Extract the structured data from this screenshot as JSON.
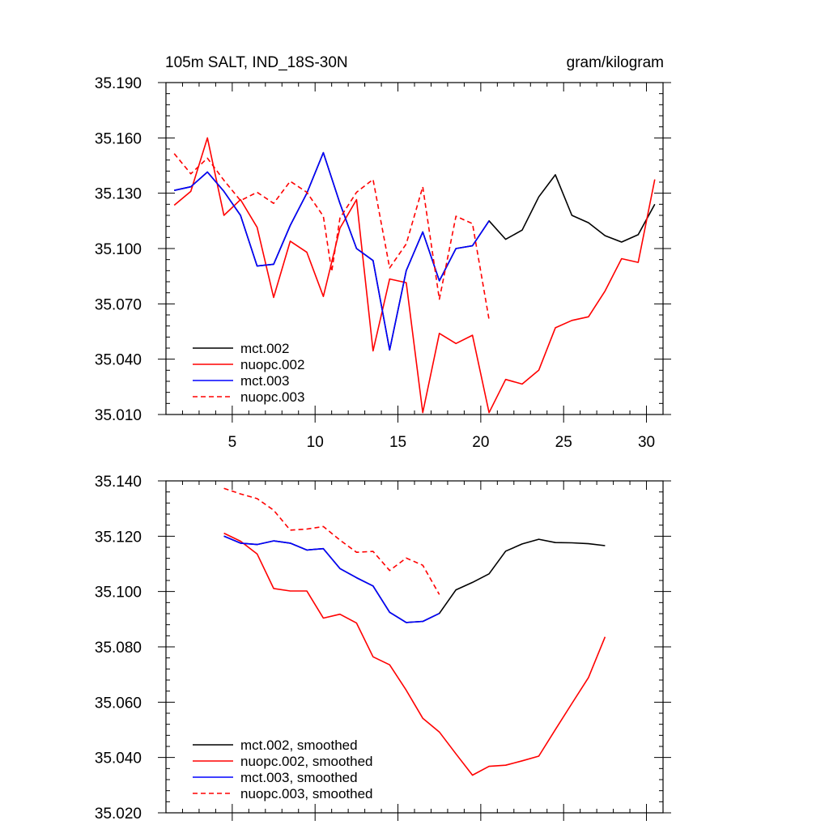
{
  "chart_data": [
    {
      "type": "line",
      "title_left": "105m SALT, IND_18S-30N",
      "title_right": "gram/kilogram",
      "xlabel": "",
      "ylabel": "",
      "xlim": [
        1,
        31
      ],
      "ylim": [
        35.01,
        35.19
      ],
      "x_ticks": [
        5,
        10,
        15,
        20,
        25,
        30
      ],
      "x_tick_labels": [
        "5",
        "10",
        "15",
        "20",
        "25",
        "30"
      ],
      "y_ticks": [
        35.01,
        35.04,
        35.07,
        35.1,
        35.13,
        35.16,
        35.19
      ],
      "y_tick_labels": [
        "35.010",
        "35.040",
        "35.070",
        "35.100",
        "35.130",
        "35.160",
        "35.190"
      ],
      "legend_position": "bottom-left",
      "series": [
        {
          "name": "mct.002",
          "color": "#000000",
          "dash": "solid",
          "x": [
            1.5,
            2.5,
            3.5,
            4.5,
            5.5,
            6.5,
            7.5,
            8.5,
            9.5,
            10.5,
            11.5,
            12.5,
            13.5,
            14.5,
            15.5,
            16.5,
            17.5,
            18.5,
            19.5,
            20.5,
            21.5,
            22.5,
            23.5,
            24.5,
            25.5,
            26.5,
            27.5,
            28.5,
            29.5,
            30.5
          ],
          "y": [
            35.1315,
            35.1335,
            35.1415,
            35.131,
            35.118,
            35.0905,
            35.0915,
            35.1125,
            35.13,
            35.152,
            35.1245,
            35.1,
            35.0935,
            35.045,
            35.088,
            35.109,
            35.0825,
            35.1,
            35.1015,
            35.115,
            35.105,
            35.11,
            35.128,
            35.14,
            35.118,
            35.114,
            35.107,
            35.1035,
            35.1075,
            35.124
          ]
        },
        {
          "name": "nuopc.002",
          "color": "#ff0000",
          "dash": "solid",
          "x": [
            1.5,
            2.5,
            3.5,
            4.5,
            5.5,
            6.5,
            7.5,
            8.5,
            9.5,
            10.5,
            11.5,
            12.5,
            13.5,
            14.5,
            15.5,
            16.5,
            17.5,
            18.5,
            19.5,
            20.5,
            21.5,
            22.5,
            23.5,
            24.5,
            25.5,
            26.5,
            27.5,
            28.5,
            29.5,
            30.5
          ],
          "y": [
            35.1235,
            35.131,
            35.16,
            35.118,
            35.1265,
            35.1115,
            35.0735,
            35.104,
            35.098,
            35.074,
            35.111,
            35.1265,
            35.0445,
            35.0835,
            35.0815,
            35.011,
            35.054,
            35.0485,
            35.053,
            35.011,
            35.029,
            35.0265,
            35.034,
            35.057,
            35.061,
            35.063,
            35.077,
            35.0945,
            35.0925,
            35.1375
          ]
        },
        {
          "name": "mct.003",
          "color": "#0000ff",
          "dash": "solid",
          "x": [
            1.5,
            2.5,
            3.5,
            4.5,
            5.5,
            6.5,
            7.5,
            8.5,
            9.5,
            10.5,
            11.5,
            12.5,
            13.5,
            14.5,
            15.5,
            16.5,
            17.5,
            18.5,
            19.5,
            20.5
          ],
          "y": [
            35.1315,
            35.1335,
            35.1415,
            35.131,
            35.118,
            35.0905,
            35.0915,
            35.1125,
            35.13,
            35.152,
            35.1245,
            35.1,
            35.0935,
            35.045,
            35.088,
            35.109,
            35.0825,
            35.1,
            35.1015,
            35.115
          ]
        },
        {
          "name": "nuopc.003",
          "color": "#ff0000",
          "dash": "dashed",
          "x": [
            1.5,
            2.5,
            3.5,
            4.5,
            5.5,
            6.5,
            7.5,
            8.5,
            9.5,
            10.5,
            11.0,
            11.5,
            12.5,
            13.5,
            14.5,
            15.5,
            16.5,
            17.5,
            18.5,
            19.5,
            20.5
          ],
          "y": [
            35.1515,
            35.1405,
            35.149,
            35.137,
            35.126,
            35.1305,
            35.1245,
            35.1365,
            35.1305,
            35.1175,
            35.0875,
            35.1165,
            35.1305,
            35.1375,
            35.0895,
            35.1025,
            35.1335,
            35.0725,
            35.1175,
            35.1135,
            35.0615
          ]
        }
      ]
    },
    {
      "type": "line",
      "title_left": "",
      "title_right": "",
      "xlabel": "",
      "ylabel": "",
      "xlim": [
        1,
        31
      ],
      "ylim": [
        35.02,
        35.14
      ],
      "x_ticks": [
        5,
        10,
        15,
        20,
        25,
        30
      ],
      "x_tick_labels": [],
      "y_ticks": [
        35.02,
        35.04,
        35.06,
        35.08,
        35.1,
        35.12,
        35.14
      ],
      "y_tick_labels": [
        "35.020",
        "35.040",
        "35.060",
        "35.080",
        "35.100",
        "35.120",
        "35.140"
      ],
      "legend_position": "bottom-left",
      "series": [
        {
          "name": "mct.002, smoothed",
          "color": "#000000",
          "dash": "solid",
          "x": [
            4.5,
            5.5,
            6.5,
            7.5,
            8.5,
            9.5,
            10.5,
            11.5,
            12.5,
            13.5,
            14.5,
            15.5,
            16.5,
            17.5,
            18.5,
            19.5,
            20.5,
            21.5,
            22.5,
            23.5,
            24.5,
            25.5,
            26.5,
            27.5
          ],
          "y": [
            35.12,
            35.1175,
            35.117,
            35.1183,
            35.1175,
            35.115,
            35.1155,
            35.1083,
            35.105,
            35.102,
            35.0925,
            35.0888,
            35.0892,
            35.0921,
            35.1006,
            35.1033,
            35.1064,
            35.1146,
            35.1172,
            35.1189,
            35.1177,
            35.1176,
            35.1173,
            35.1166
          ]
        },
        {
          "name": "nuopc.002, smoothed",
          "color": "#ff0000",
          "dash": "solid",
          "x": [
            4.5,
            5.5,
            6.5,
            7.5,
            8.5,
            9.5,
            10.5,
            11.5,
            12.5,
            13.5,
            14.5,
            15.5,
            16.5,
            17.5,
            18.5,
            19.5,
            20.5,
            21.5,
            22.5,
            23.5,
            24.5,
            25.5,
            26.5,
            27.5
          ],
          "y": [
            35.1211,
            35.1182,
            35.1136,
            35.1011,
            35.1002,
            35.1002,
            35.0904,
            35.0918,
            35.0886,
            35.0764,
            35.0735,
            35.0643,
            35.0542,
            35.0492,
            35.0413,
            35.0336,
            35.0368,
            35.0372,
            35.0388,
            35.0405,
            35.0501,
            35.0595,
            35.0689,
            35.0836
          ]
        },
        {
          "name": "mct.003, smoothed",
          "color": "#0000ff",
          "dash": "solid",
          "x": [
            4.5,
            5.5,
            6.5,
            7.5,
            8.5,
            9.5,
            10.5,
            11.5,
            12.5,
            13.5,
            14.5,
            15.5,
            16.5,
            17.5
          ],
          "y": [
            35.12,
            35.1175,
            35.117,
            35.1183,
            35.1175,
            35.115,
            35.1155,
            35.1083,
            35.105,
            35.102,
            35.0925,
            35.0888,
            35.0892,
            35.0921
          ]
        },
        {
          "name": "nuopc.003, smoothed",
          "color": "#ff0000",
          "dash": "dashed",
          "x": [
            4.5,
            5.5,
            6.5,
            7.5,
            8.5,
            9.5,
            10.5,
            11.5,
            12.5,
            13.5,
            14.5,
            15.5,
            16.5,
            17.5
          ],
          "y": [
            35.1373,
            35.1353,
            35.1336,
            35.1294,
            35.1222,
            35.1226,
            35.1235,
            35.1186,
            35.1142,
            35.1145,
            35.1076,
            35.1121,
            35.1095,
            35.0989
          ]
        }
      ]
    }
  ]
}
